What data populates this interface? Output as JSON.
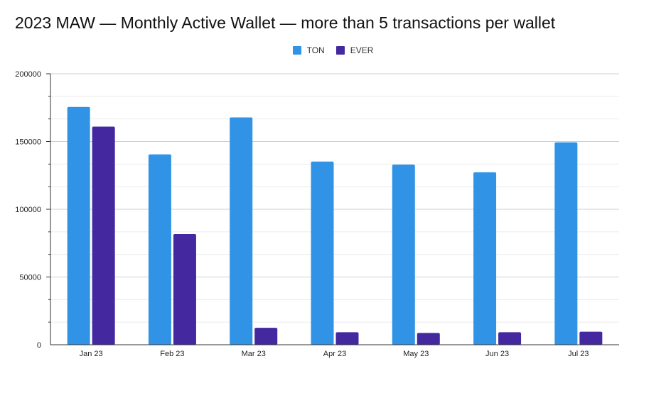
{
  "chart_data": {
    "type": "bar",
    "title": "2023 MAW — Monthly Active Wallet — more than 5 transactions per wallet",
    "xlabel": "",
    "ylabel": "",
    "categories": [
      "Jan 23",
      "Feb 23",
      "Mar 23",
      "Apr 23",
      "May 23",
      "Jun 23",
      "Jul 23"
    ],
    "series": [
      {
        "name": "TON",
        "color": "#3093e6",
        "values": [
          175500,
          140500,
          167800,
          135200,
          133000,
          127300,
          149400
        ]
      },
      {
        "name": "EVER",
        "color": "#4428a0",
        "values": [
          161000,
          81700,
          12500,
          9200,
          8700,
          9200,
          9600
        ]
      }
    ],
    "ylim": [
      0,
      200000
    ],
    "yticks": [
      "0",
      "50000",
      "100000",
      "150000",
      "200000"
    ],
    "grid": true,
    "legend_position": "top"
  }
}
